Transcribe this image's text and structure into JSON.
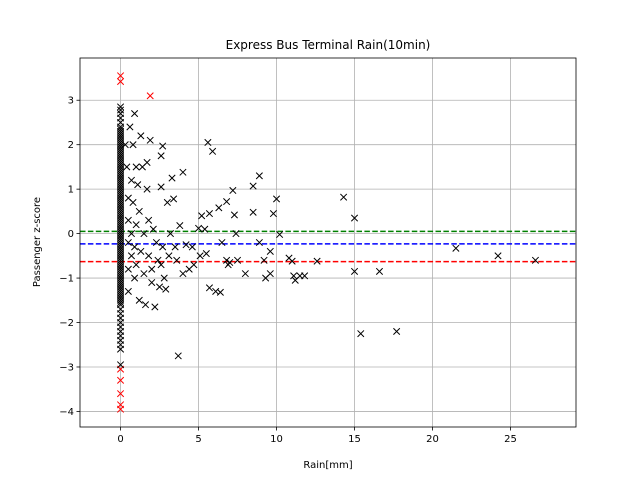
{
  "chart_data": {
    "type": "scatter",
    "title": "Express Bus Terminal Rain(10min)",
    "xlabel": "Rain[mm]",
    "ylabel": "Passenger z-score",
    "xlim": [
      -2.6,
      29.2
    ],
    "ylim": [
      -4.35,
      3.95
    ],
    "xticks": [
      0,
      5,
      10,
      15,
      20,
      25
    ],
    "yticks": [
      -4,
      -3,
      -2,
      -1,
      0,
      1,
      2,
      3
    ],
    "grid": true,
    "marker": "x",
    "reference_lines": [
      {
        "y": 0.05,
        "color": "#008000",
        "style": "dashed"
      },
      {
        "y": -0.23,
        "color": "#0000ff",
        "style": "dashed"
      },
      {
        "y": -0.63,
        "color": "#ff0000",
        "style": "dashed"
      }
    ],
    "series": [
      {
        "color": "#ff0000",
        "points": [
          [
            0,
            3.55
          ],
          [
            0,
            3.42
          ],
          [
            1.9,
            3.1
          ],
          [
            0,
            -3.05
          ],
          [
            0,
            -3.3
          ],
          [
            0,
            -3.6
          ],
          [
            0,
            -3.85
          ],
          [
            0,
            -3.95
          ]
        ]
      },
      {
        "color": "#000000",
        "points": [
          [
            0,
            2.85
          ],
          [
            0,
            2.78
          ],
          [
            0,
            2.7
          ],
          [
            0,
            2.6
          ],
          [
            0,
            2.5
          ],
          [
            0,
            2.4
          ],
          [
            0,
            2.35
          ],
          [
            0,
            2.3
          ],
          [
            0,
            2.25
          ],
          [
            0,
            2.2
          ],
          [
            0,
            2.15
          ],
          [
            0,
            2.1
          ],
          [
            0,
            2.05
          ],
          [
            0,
            2.0
          ],
          [
            0,
            1.95
          ],
          [
            0,
            1.9
          ],
          [
            0,
            1.85
          ],
          [
            0,
            1.8
          ],
          [
            0,
            1.75
          ],
          [
            0,
            1.7
          ],
          [
            0,
            1.65
          ],
          [
            0,
            1.6
          ],
          [
            0,
            1.55
          ],
          [
            0,
            1.5
          ],
          [
            0,
            1.45
          ],
          [
            0,
            1.4
          ],
          [
            0,
            1.35
          ],
          [
            0,
            1.3
          ],
          [
            0,
            1.25
          ],
          [
            0,
            1.2
          ],
          [
            0,
            1.15
          ],
          [
            0,
            1.1
          ],
          [
            0,
            1.05
          ],
          [
            0,
            1.0
          ],
          [
            0,
            0.95
          ],
          [
            0,
            0.9
          ],
          [
            0,
            0.85
          ],
          [
            0,
            0.8
          ],
          [
            0,
            0.75
          ],
          [
            0,
            0.7
          ],
          [
            0,
            0.65
          ],
          [
            0,
            0.6
          ],
          [
            0,
            0.55
          ],
          [
            0,
            0.5
          ],
          [
            0,
            0.45
          ],
          [
            0,
            0.4
          ],
          [
            0,
            0.35
          ],
          [
            0,
            0.3
          ],
          [
            0,
            0.25
          ],
          [
            0,
            0.2
          ],
          [
            0,
            0.15
          ],
          [
            0,
            0.1
          ],
          [
            0,
            0.05
          ],
          [
            0,
            0.0
          ],
          [
            0,
            -0.05
          ],
          [
            0,
            -0.1
          ],
          [
            0,
            -0.15
          ],
          [
            0,
            -0.2
          ],
          [
            0,
            -0.25
          ],
          [
            0,
            -0.3
          ],
          [
            0,
            -0.35
          ],
          [
            0,
            -0.4
          ],
          [
            0,
            -0.45
          ],
          [
            0,
            -0.5
          ],
          [
            0,
            -0.55
          ],
          [
            0,
            -0.6
          ],
          [
            0,
            -0.65
          ],
          [
            0,
            -0.7
          ],
          [
            0,
            -0.75
          ],
          [
            0,
            -0.8
          ],
          [
            0,
            -0.85
          ],
          [
            0,
            -0.9
          ],
          [
            0,
            -0.95
          ],
          [
            0,
            -1.0
          ],
          [
            0,
            -1.05
          ],
          [
            0,
            -1.1
          ],
          [
            0,
            -1.15
          ],
          [
            0,
            -1.2
          ],
          [
            0,
            -1.25
          ],
          [
            0,
            -1.3
          ],
          [
            0,
            -1.35
          ],
          [
            0,
            -1.4
          ],
          [
            0,
            -1.45
          ],
          [
            0,
            -1.5
          ],
          [
            0,
            -1.55
          ],
          [
            0,
            -1.6
          ],
          [
            0,
            -1.7
          ],
          [
            0,
            -1.8
          ],
          [
            0,
            -1.9
          ],
          [
            0,
            -2.0
          ],
          [
            0,
            -2.1
          ],
          [
            0,
            -2.2
          ],
          [
            0,
            -2.3
          ],
          [
            0,
            -2.4
          ],
          [
            0,
            -2.5
          ],
          [
            0,
            -2.6
          ],
          [
            0,
            -2.95
          ],
          [
            0.3,
            2.0
          ],
          [
            0.4,
            1.5
          ],
          [
            0.5,
            0.8
          ],
          [
            0.5,
            0.3
          ],
          [
            0.5,
            -0.2
          ],
          [
            0.5,
            -0.8
          ],
          [
            0.5,
            -1.3
          ],
          [
            0.6,
            2.4
          ],
          [
            0.7,
            1.2
          ],
          [
            0.7,
            0.0
          ],
          [
            0.7,
            -0.5
          ],
          [
            0.8,
            2.0
          ],
          [
            0.8,
            0.7
          ],
          [
            0.9,
            2.7
          ],
          [
            0.9,
            -0.3
          ],
          [
            0.9,
            -1.0
          ],
          [
            1.0,
            1.5
          ],
          [
            1.0,
            0.2
          ],
          [
            1.0,
            -0.7
          ],
          [
            1.1,
            1.1
          ],
          [
            1.2,
            -1.5
          ],
          [
            1.2,
            0.5
          ],
          [
            1.3,
            2.2
          ],
          [
            1.3,
            -0.4
          ],
          [
            1.4,
            1.5
          ],
          [
            1.5,
            0.0
          ],
          [
            1.5,
            -0.9
          ],
          [
            1.6,
            -1.6
          ],
          [
            1.7,
            1.6
          ],
          [
            1.7,
            1.0
          ],
          [
            1.8,
            -0.5
          ],
          [
            1.8,
            0.3
          ],
          [
            1.9,
            2.1
          ],
          [
            2.0,
            -0.8
          ],
          [
            2.0,
            -1.1
          ],
          [
            2.1,
            0.1
          ],
          [
            2.2,
            -1.65
          ],
          [
            2.3,
            -0.2
          ],
          [
            2.4,
            -0.6
          ],
          [
            2.5,
            -1.2
          ],
          [
            2.6,
            1.75
          ],
          [
            2.6,
            1.05
          ],
          [
            2.6,
            -0.7
          ],
          [
            2.7,
            1.97
          ],
          [
            2.7,
            -0.3
          ],
          [
            2.8,
            -1.0
          ],
          [
            2.9,
            -1.25
          ],
          [
            3.0,
            0.7
          ],
          [
            3.1,
            -0.5
          ],
          [
            3.2,
            0.0
          ],
          [
            3.3,
            1.25
          ],
          [
            3.4,
            0.78
          ],
          [
            3.5,
            -0.3
          ],
          [
            3.6,
            -0.6
          ],
          [
            3.7,
            -2.75
          ],
          [
            3.8,
            0.18
          ],
          [
            4.0,
            1.38
          ],
          [
            4.0,
            -0.9
          ],
          [
            4.2,
            -0.25
          ],
          [
            4.4,
            -0.8
          ],
          [
            4.6,
            -0.3
          ],
          [
            4.7,
            -0.7
          ],
          [
            5.0,
            0.12
          ],
          [
            5.1,
            -0.5
          ],
          [
            5.2,
            0.4
          ],
          [
            5.4,
            0.1
          ],
          [
            5.5,
            -0.45
          ],
          [
            5.6,
            2.05
          ],
          [
            5.7,
            0.45
          ],
          [
            5.7,
            -1.22
          ],
          [
            5.9,
            1.85
          ],
          [
            6.1,
            -1.3
          ],
          [
            6.3,
            0.58
          ],
          [
            6.4,
            -1.32
          ],
          [
            6.5,
            -0.2
          ],
          [
            6.8,
            0.72
          ],
          [
            6.8,
            -0.6
          ],
          [
            6.9,
            -0.7
          ],
          [
            7.0,
            -0.65
          ],
          [
            7.2,
            0.97
          ],
          [
            7.3,
            0.42
          ],
          [
            7.4,
            0.0
          ],
          [
            7.5,
            -0.6
          ],
          [
            8.0,
            -0.9
          ],
          [
            8.5,
            1.07
          ],
          [
            8.5,
            0.48
          ],
          [
            8.9,
            1.3
          ],
          [
            8.9,
            -0.2
          ],
          [
            9.2,
            -0.6
          ],
          [
            9.3,
            -1.0
          ],
          [
            9.6,
            -0.4
          ],
          [
            9.6,
            -0.9
          ],
          [
            9.8,
            0.45
          ],
          [
            10.0,
            0.78
          ],
          [
            10.2,
            -0.02
          ],
          [
            10.8,
            -0.55
          ],
          [
            11.0,
            -0.62
          ],
          [
            11.1,
            -0.95
          ],
          [
            11.2,
            -1.05
          ],
          [
            11.5,
            -0.95
          ],
          [
            11.8,
            -0.95
          ],
          [
            12.6,
            -0.62
          ],
          [
            14.3,
            0.82
          ],
          [
            15.0,
            0.35
          ],
          [
            15.0,
            -0.85
          ],
          [
            15.4,
            -2.25
          ],
          [
            16.6,
            -0.85
          ],
          [
            17.7,
            -2.2
          ],
          [
            21.5,
            -0.33
          ],
          [
            24.2,
            -0.5
          ],
          [
            26.6,
            -0.6
          ]
        ]
      }
    ]
  }
}
